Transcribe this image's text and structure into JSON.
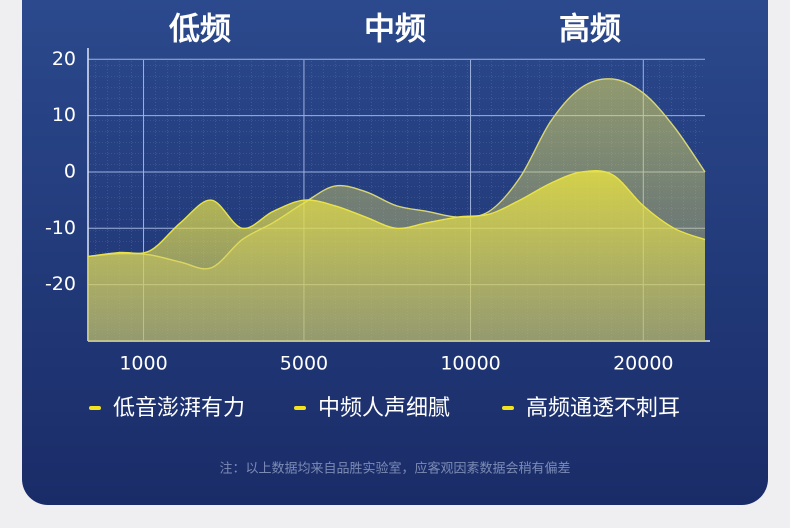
{
  "chart_data": {
    "type": "area",
    "band_labels": [
      "低频",
      "中频",
      "高频"
    ],
    "x": [
      0,
      5,
      10,
      15,
      20,
      25,
      30,
      35,
      40,
      45,
      50,
      55,
      60,
      65,
      70,
      75,
      80,
      85,
      90,
      95,
      100
    ],
    "xlim": [
      0,
      100
    ],
    "xticks": [
      {
        "value": 9,
        "label": "1000"
      },
      {
        "value": 35,
        "label": "5000"
      },
      {
        "value": 62,
        "label": "10000"
      },
      {
        "value": 90,
        "label": "20000"
      }
    ],
    "ylim": [
      -30,
      22
    ],
    "yticks": [
      -20,
      -10,
      0,
      10,
      20
    ],
    "grid": true,
    "series": [
      {
        "color": "#e9e24a",
        "values": [
          -15,
          -14.3,
          -14,
          -9,
          -5,
          -10,
          -7,
          -5,
          -6,
          -8,
          -10,
          -9,
          -8,
          -7.5,
          -5,
          -2,
          0,
          -0.5,
          -6,
          -10,
          -12
        ]
      },
      {
        "color": "#d9d676",
        "values": [
          -15,
          -14.5,
          -14.7,
          -16,
          -17,
          -12,
          -9,
          -5.5,
          -2.5,
          -3.5,
          -6,
          -7,
          -8,
          -7,
          -1,
          9,
          15,
          16.5,
          14,
          8,
          0
        ]
      }
    ],
    "legend_items": [
      "低音澎湃有力",
      "中频人声细腻",
      "高频通透不刺耳"
    ],
    "footnote": "注：以上数据均来自品胜实验室，应客观因素数据会稍有偏差"
  }
}
